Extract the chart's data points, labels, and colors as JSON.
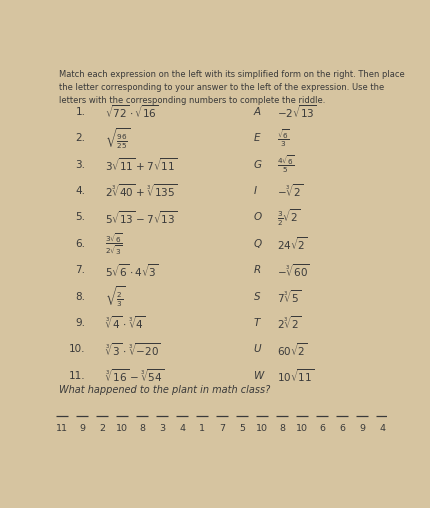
{
  "bg_color": "#d6c4a0",
  "text_color": "#3a3a3a",
  "title_lines": [
    "Match each expression on the left with its simplified form on the right. Then place",
    "the letter corresponding to your answer to the left of the expression. Use the",
    "letters with the corresponding numbers to complete the riddle."
  ],
  "left_labels": [
    "1.",
    "2.",
    "3.",
    "4.",
    "5.",
    "6.",
    "7.",
    "8.",
    "9.",
    "10.",
    "11."
  ],
  "left_expressions": [
    "$\\sqrt{72}\\cdot\\sqrt{16}$",
    "$\\sqrt{\\frac{96}{25}}$",
    "$3\\sqrt{11}+7\\sqrt{11}$",
    "$2\\sqrt[3]{40}+\\sqrt[3]{135}$",
    "$5\\sqrt{13}-7\\sqrt{13}$",
    "$\\frac{3\\sqrt{6}}{2\\sqrt{3}}$",
    "$5\\sqrt{6}\\cdot4\\sqrt{3}$",
    "$\\sqrt{\\frac{2}{3}}$",
    "$\\sqrt[3]{4}\\cdot\\sqrt[3]{4}$",
    "$\\sqrt[3]{3}\\cdot\\sqrt[3]{-20}$",
    "$\\sqrt[3]{16}-\\sqrt[3]{54}$"
  ],
  "right_labels": [
    "A",
    "E",
    "G",
    "I",
    "O",
    "Q",
    "R",
    "S",
    "T",
    "U",
    "W"
  ],
  "right_expressions": [
    "$-2\\sqrt{13}$",
    "$\\frac{\\sqrt{6}}{3}$",
    "$\\frac{4\\sqrt{6}}{5}$",
    "$-\\sqrt[3]{2}$",
    "$\\frac{3}{2}\\sqrt{2}$",
    "$24\\sqrt{2}$",
    "$-\\sqrt[3]{60}$",
    "$7\\sqrt[3]{5}$",
    "$2\\sqrt[3]{2}$",
    "$60\\sqrt{2}$",
    "$10\\sqrt{11}$"
  ],
  "riddle_question": "What happened to the plant in math class?",
  "riddle_numbers": [
    "11",
    "9",
    "2",
    "10",
    "8",
    "3",
    "4",
    "1",
    "7",
    "5",
    "10",
    "8",
    "10",
    "6",
    "6",
    "9",
    "4"
  ],
  "title_fontsize": 6.0,
  "expr_fontsize": 7.5,
  "label_fontsize": 7.5,
  "riddle_fontsize": 7.0,
  "num_fontsize": 6.8
}
